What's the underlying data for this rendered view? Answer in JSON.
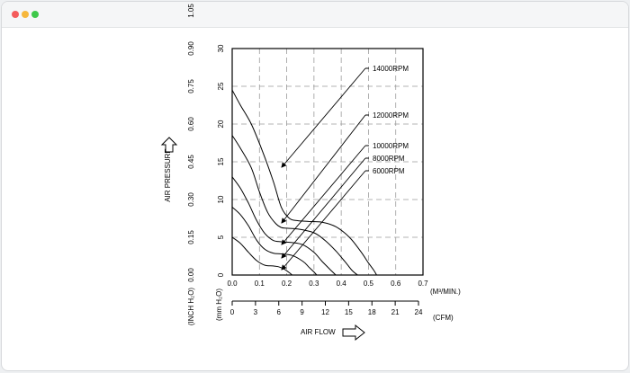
{
  "window": {
    "dot_colors": [
      "#f45b5b",
      "#f6b73c",
      "#3ec84a"
    ]
  },
  "chart_data": {
    "type": "line",
    "title": "",
    "ylabel": "AIR PRESSURE",
    "xlabel": "AIR FLOW",
    "x_unit_label": "(M³/MIN.)",
    "x2_unit_label": "(CFM)",
    "y_unit_label": "(mm H₂O)",
    "y2_unit_label": "(INCH H₂O)",
    "xlim": [
      0,
      0.7
    ],
    "ylim": [
      0,
      30
    ],
    "grid": true,
    "x_ticks": [
      "0.0",
      "0.1",
      "0.2",
      "0.3",
      "0.4",
      "0.5",
      "0.6",
      "0.7"
    ],
    "x_tick_values": [
      0,
      0.1,
      0.2,
      0.3,
      0.4,
      0.5,
      0.6,
      0.7
    ],
    "x2_ticks": [
      "0",
      "3",
      "6",
      "9",
      "12",
      "15",
      "18",
      "21",
      "24"
    ],
    "x2_tick_values": [
      0,
      3,
      6,
      9,
      12,
      15,
      18,
      21,
      24
    ],
    "y_ticks": [
      "0",
      "5",
      "10",
      "15",
      "20",
      "25",
      "30"
    ],
    "y_tick_values": [
      0,
      5,
      10,
      15,
      20,
      25,
      30
    ],
    "y2_ticks": [
      "0.00",
      "0.15",
      "0.30",
      "0.45",
      "0.60",
      "0.75",
      "0.90",
      "1.05"
    ],
    "y2_tick_values": [
      0,
      0.15,
      0.3,
      0.45,
      0.6,
      0.75,
      0.9,
      1.05
    ],
    "series": [
      {
        "name": "14000RPM",
        "x": [
          0,
          0.03,
          0.07,
          0.11,
          0.15,
          0.18,
          0.21,
          0.24,
          0.28,
          0.33,
          0.38,
          0.43,
          0.47,
          0.5,
          0.52,
          0.53
        ],
        "y": [
          24.5,
          22.5,
          20.0,
          16.5,
          12.5,
          9.0,
          7.5,
          7.2,
          7.1,
          7.0,
          6.4,
          5.0,
          3.2,
          1.6,
          0.6,
          0
        ]
      },
      {
        "name": "12000RPM",
        "x": [
          0,
          0.03,
          0.07,
          0.1,
          0.13,
          0.16,
          0.18,
          0.2,
          0.24,
          0.3,
          0.34,
          0.38,
          0.42,
          0.44,
          0.46
        ],
        "y": [
          18.5,
          16.8,
          14.2,
          11.0,
          8.3,
          6.8,
          6.3,
          6.2,
          6.1,
          5.6,
          4.6,
          3.2,
          1.5,
          0.6,
          0
        ]
      },
      {
        "name": "10000RPM",
        "x": [
          0,
          0.03,
          0.06,
          0.09,
          0.12,
          0.15,
          0.18,
          0.22,
          0.26,
          0.3,
          0.33,
          0.36,
          0.38
        ],
        "y": [
          13.0,
          11.5,
          9.5,
          7.2,
          5.5,
          4.6,
          4.4,
          4.3,
          4.0,
          3.0,
          1.8,
          0.7,
          0
        ]
      },
      {
        "name": "8000RPM",
        "x": [
          0,
          0.03,
          0.06,
          0.09,
          0.12,
          0.15,
          0.18,
          0.22,
          0.26,
          0.28,
          0.3,
          0.31
        ],
        "y": [
          9.0,
          8.0,
          6.5,
          4.6,
          3.4,
          2.9,
          2.8,
          2.6,
          1.8,
          1.1,
          0.4,
          0
        ]
      },
      {
        "name": "6000RPM",
        "x": [
          0,
          0.03,
          0.06,
          0.09,
          0.12,
          0.15,
          0.17,
          0.19,
          0.21,
          0.22
        ],
        "y": [
          5.0,
          4.2,
          3.0,
          1.9,
          1.3,
          1.2,
          1.1,
          0.8,
          0.3,
          0
        ]
      }
    ],
    "legend_placement": "right, leader lines",
    "colors": {
      "line": "#000000",
      "grid": "#9a9a9a"
    }
  }
}
